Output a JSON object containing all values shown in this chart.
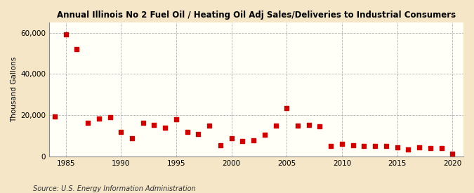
{
  "title": "Annual Illinois No 2 Fuel Oil / Heating Oil Adj Sales/Deliveries to Industrial Consumers",
  "ylabel": "Thousand Gallons",
  "source": "Source: U.S. Energy Information Administration",
  "outer_bg": "#f5e6c8",
  "inner_bg": "#fffff8",
  "marker_color": "#cc0000",
  "marker_size": 18,
  "grid_color": "#aaaaaa",
  "xlim": [
    1983.5,
    2021
  ],
  "ylim": [
    0,
    65000
  ],
  "yticks": [
    0,
    20000,
    40000,
    60000
  ],
  "ytick_labels": [
    "0",
    "20,000",
    "40,000",
    "60,000"
  ],
  "xticks": [
    1985,
    1990,
    1995,
    2000,
    2005,
    2010,
    2015,
    2020
  ],
  "years": [
    1984,
    1985,
    1986,
    1987,
    1988,
    1989,
    1990,
    1991,
    1992,
    1993,
    1994,
    1995,
    1996,
    1997,
    1998,
    1999,
    2000,
    2001,
    2002,
    2003,
    2004,
    2005,
    2006,
    2007,
    2008,
    2009,
    2010,
    2011,
    2012,
    2013,
    2014,
    2015,
    2016,
    2017,
    2018,
    2019,
    2020
  ],
  "values": [
    19500,
    59200,
    52000,
    16500,
    18500,
    19200,
    12000,
    9000,
    16500,
    15500,
    14000,
    18000,
    12000,
    11000,
    15000,
    5500,
    9000,
    7500,
    8000,
    10500,
    15000,
    23500,
    15000,
    15500,
    14500,
    5000,
    6000,
    5500,
    5000,
    5000,
    5000,
    4500,
    3500,
    4500,
    4000,
    4000,
    1500
  ]
}
